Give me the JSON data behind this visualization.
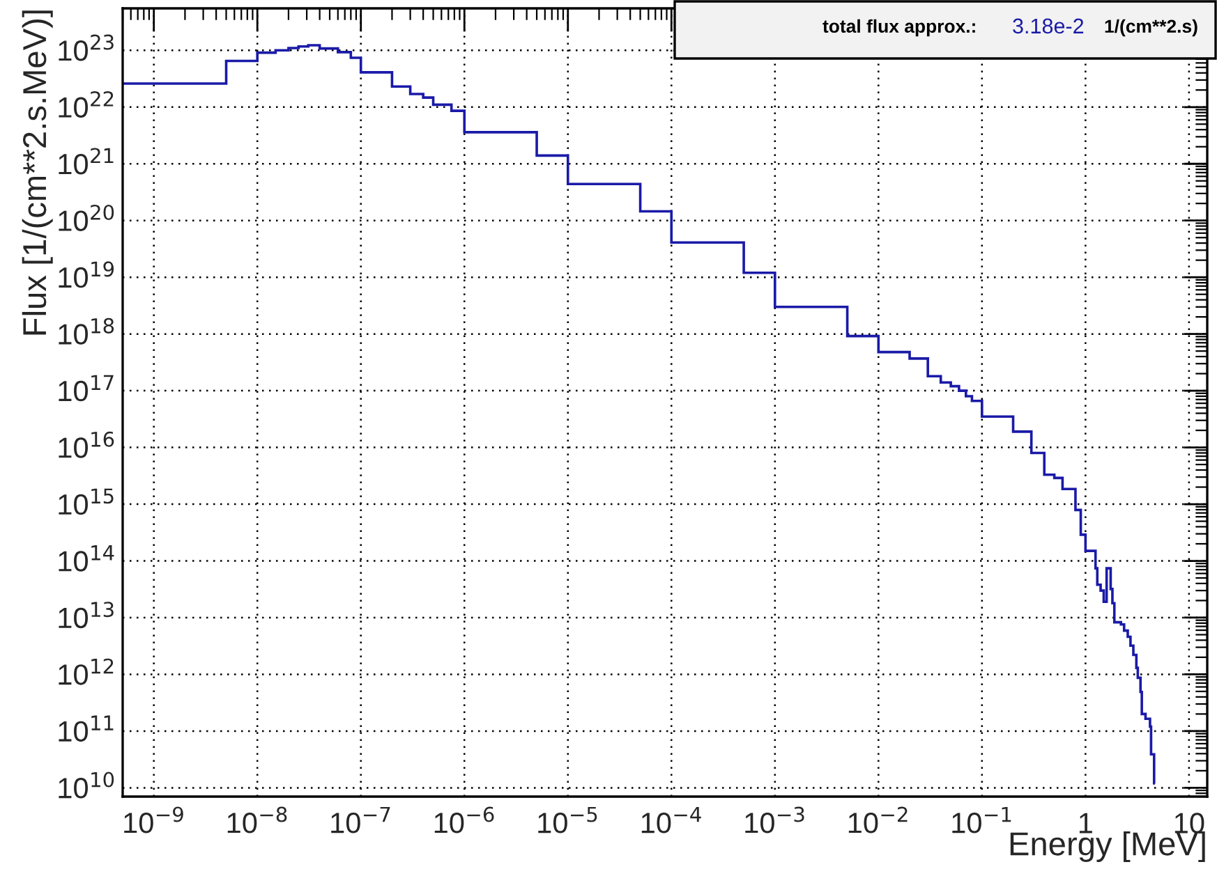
{
  "chart_data": {
    "type": "histogram",
    "xlabel": "Energy [MeV]",
    "ylabel": "Flux [1/(cm**2.s.MeV)]",
    "annotations": [
      "total flux approx.:",
      "3.18e-2",
      "1/(cm**2.s)"
    ],
    "color": "#1a1aa8",
    "log": "xy",
    "grid": true,
    "xlim": [
      5e-10,
      15
    ],
    "ylim": [
      7000000000.0,
      5.5e+23
    ],
    "xticks": [
      {
        "value": 1e-09,
        "label": "10$^{−9}$"
      },
      {
        "value": 1e-08,
        "label": "10$^{−8}$"
      },
      {
        "value": 1e-07,
        "label": "10$^{−7}$"
      },
      {
        "value": 1e-06,
        "label": "10$^{−6}$"
      },
      {
        "value": 1e-05,
        "label": "10$^{−5}$"
      },
      {
        "value": 0.0001,
        "label": "10$^{−4}$"
      },
      {
        "value": 0.001,
        "label": "10$^{−3}$"
      },
      {
        "value": 0.01,
        "label": "10$^{−2}$"
      },
      {
        "value": 0.1,
        "label": "10$^{−1}$"
      },
      1,
      10
    ],
    "yticks": [
      {
        "value": 10000000000.0,
        "label": "10$^{10}$"
      },
      {
        "value": 100000000000.0,
        "label": "10$^{11}$"
      },
      {
        "value": 1000000000000.0,
        "label": "10$^{12}$"
      },
      {
        "value": 10000000000000.0,
        "label": "10$^{13}$"
      },
      {
        "value": 100000000000000.0,
        "label": "10$^{14}$"
      },
      {
        "value": 1000000000000000.0,
        "label": "10$^{15}$"
      },
      {
        "value": 1e+16,
        "label": "10$^{16}$"
      },
      {
        "value": 1e+17,
        "label": "10$^{17}$"
      },
      {
        "value": 1e+18,
        "label": "10$^{18}$"
      },
      {
        "value": 1e+19,
        "label": "10$^{19}$"
      },
      {
        "value": 1e+20,
        "label": "10$^{20}$"
      },
      {
        "value": 1e+21,
        "label": "10$^{21}$"
      },
      {
        "value": 1e+22,
        "label": "10$^{22}$"
      },
      {
        "value": 1e+23,
        "label": "10$^{23}$"
      }
    ],
    "bins": [
      5e-10,
      5e-09,
      1e-08,
      1.5e-08,
      2e-08,
      2.5e-08,
      3.1e-08,
      4e-08,
      6e-08,
      8e-08,
      1e-07,
      2e-07,
      3e-07,
      4e-07,
      5e-07,
      7.5e-07,
      1e-06,
      5e-06,
      1e-05,
      5e-05,
      0.0001,
      0.0005,
      0.001,
      0.005,
      0.01,
      0.02,
      0.03,
      0.04,
      0.05,
      0.06,
      0.07,
      0.08,
      0.1,
      0.2,
      0.3,
      0.4,
      0.5,
      0.6,
      0.8,
      0.9,
      1.0,
      1.25,
      1.3,
      1.4,
      1.5,
      1.6,
      1.75,
      1.82,
      1.9,
      2.2,
      2.36,
      2.56,
      2.72,
      2.9,
      3.1,
      3.2,
      3.4,
      3.5,
      3.8,
      4.2,
      4.3,
      4.6,
      4.7
    ],
    "values": [
      2.6e+22,
      6.5e+22,
      9.1e+22,
      1e+23,
      1.1e+23,
      1.17e+23,
      1.23e+23,
      1.08e+23,
      9.3e+22,
      7.4e+22,
      4.1e+22,
      2.3e+22,
      1.7e+22,
      1.47e+22,
      1.1e+22,
      8.6e+21,
      3.6e+21,
      1.4e+21,
      4.4e+20,
      1.45e+20,
      4.1e+19,
      1.2e+19,
      3e+18,
      9.2e+17,
      4.8e+17,
      3.7e+17,
      1.8e+17,
      1.4e+17,
      1.2e+17,
      1e+17,
      8e+16,
      6.6e+16,
      3.5e+16,
      1.9e+16,
      8000000000000000.0,
      3300000000000000.0,
      2900000000000000.0,
      1850000000000000.0,
      790000000000000.0,
      290000000000000.0,
      150000000000000.0,
      74000000000000.0,
      38000000000000.0,
      30000000000000.0,
      19000000000000.0,
      74000000000000.0,
      32000000000000.0,
      18000000000000.0,
      8300000000000.0,
      7600000000000.0,
      5900000000000.0,
      4600000000000.0,
      3200000000000.0,
      2200000000000.0,
      1300000000000.0,
      870000000000.0,
      490000000000.0,
      200000000000.0,
      165000000000.0,
      120000000000.0,
      39000000000.0,
      12000000000.0
    ]
  }
}
